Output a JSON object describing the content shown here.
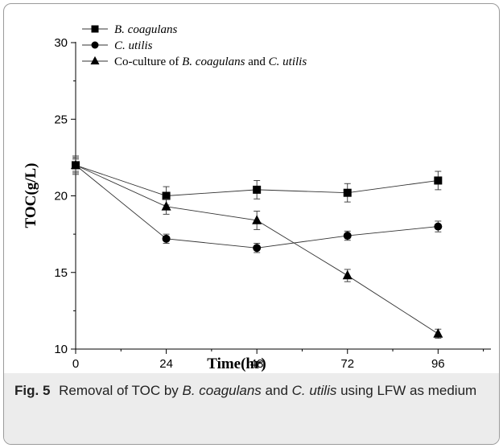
{
  "chart_data": {
    "type": "line",
    "xlabel": "Time(hr)",
    "ylabel": "TOC(g/L)",
    "x": [
      0,
      24,
      48,
      72,
      96
    ],
    "xlim": [
      0,
      110
    ],
    "ylim": [
      10,
      30
    ],
    "xticks": [
      0,
      24,
      48,
      72,
      96
    ],
    "yticks": [
      10,
      15,
      20,
      25,
      30
    ],
    "grid": false,
    "legend_position": "top-left",
    "series": [
      {
        "name": "B. coagulans",
        "marker": "square",
        "values": [
          22.0,
          20.0,
          20.4,
          20.2,
          21.0
        ],
        "errors": [
          0.6,
          0.6,
          0.6,
          0.6,
          0.6
        ]
      },
      {
        "name": "C. utilis",
        "marker": "circle",
        "values": [
          22.0,
          17.2,
          16.6,
          17.4,
          18.0
        ],
        "errors": [
          0.4,
          0.3,
          0.3,
          0.3,
          0.35
        ]
      },
      {
        "name": "Co-culture of B. coagulans and C. utilis",
        "marker": "triangle",
        "values": [
          22.0,
          19.3,
          18.4,
          14.8,
          11.0
        ],
        "errors": [
          0.5,
          0.5,
          0.6,
          0.4,
          0.3
        ]
      }
    ]
  },
  "caption": {
    "label": "Fig. 5",
    "text": "Removal of TOC by B. coagulans and C. utilis using LFW as medium"
  }
}
